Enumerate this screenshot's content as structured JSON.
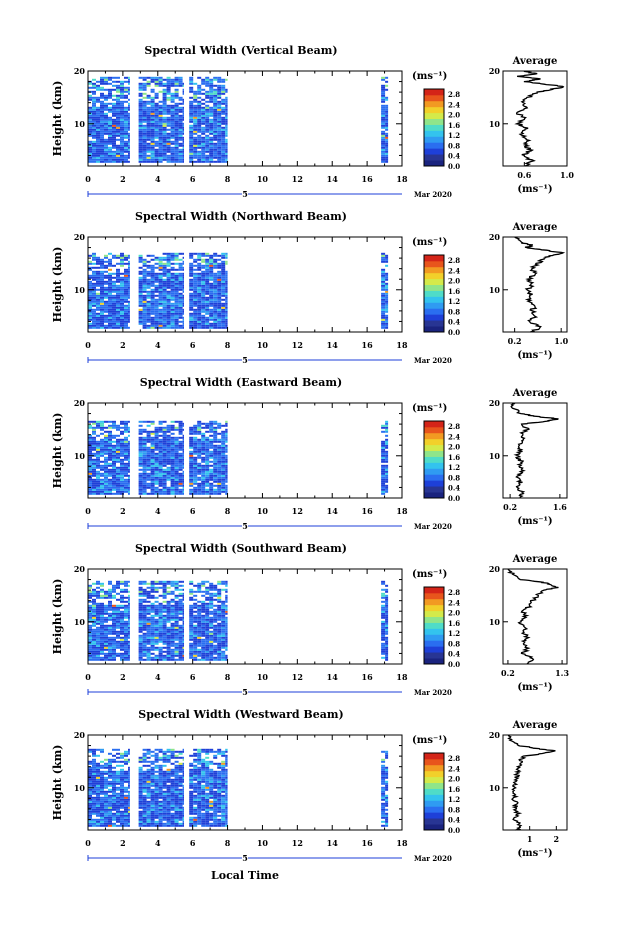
{
  "chart_data": {
    "type": "heatmap",
    "date_label": "5",
    "month_label": "Mar 2020",
    "xlabel": "Local Time",
    "ylabel": "Height (km)",
    "x_ticks": [
      "0",
      "2",
      "4",
      "6",
      "8",
      "10",
      "12",
      "14",
      "16",
      "18"
    ],
    "xlim": [
      0,
      18
    ],
    "ylim": [
      2,
      20
    ],
    "y_ticks": [
      "10",
      "20"
    ],
    "colorbar": {
      "unit": "(ms⁻¹)",
      "tick_labels": [
        "2.8",
        "2.4",
        "2.0",
        "1.6",
        "1.2",
        "0.8",
        "0.4",
        "0.0"
      ],
      "range": [
        0,
        3.0
      ],
      "colors": [
        "#1a237e",
        "#283593",
        "#1e40d8",
        "#2a6ef0",
        "#2f9bf2",
        "#33c3ee",
        "#4fdcc8",
        "#8fe58a",
        "#d4ea4a",
        "#f2d02a",
        "#f29a22",
        "#e8551c",
        "#d42418"
      ]
    },
    "data_time_blocks": [
      [
        0,
        2.4
      ],
      [
        2.9,
        5.5
      ],
      [
        5.8,
        8.0
      ],
      [
        16.8,
        17.2
      ]
    ],
    "average_title": "Average",
    "average_unit": "(ms⁻¹)",
    "average_y_ticks": [
      "10",
      "20"
    ],
    "panels": [
      {
        "title": "Spectral Width (Vertical Beam)",
        "avg_ticks": [
          "0.6",
          "1.0"
        ],
        "avg_xlim": [
          0.4,
          1.0
        ],
        "avg_profile": [
          [
            2,
            0.6
          ],
          [
            3,
            0.68
          ],
          [
            4,
            0.58
          ],
          [
            5,
            0.66
          ],
          [
            6,
            0.6
          ],
          [
            7,
            0.64
          ],
          [
            8,
            0.56
          ],
          [
            9,
            0.63
          ],
          [
            10,
            0.55
          ],
          [
            11,
            0.6
          ],
          [
            12,
            0.54
          ],
          [
            13,
            0.62
          ],
          [
            14,
            0.58
          ],
          [
            15,
            0.64
          ],
          [
            16,
            0.72
          ],
          [
            16.5,
            0.85
          ],
          [
            17,
            0.98
          ],
          [
            17.5,
            0.8
          ],
          [
            18,
            0.6
          ],
          [
            18.5,
            0.75
          ],
          [
            19,
            0.55
          ],
          [
            19.5,
            0.7
          ],
          [
            20,
            0.6
          ]
        ]
      },
      {
        "title": "Spectral Width (Northward Beam)",
        "avg_ticks": [
          "0.2",
          "1.0"
        ],
        "avg_xlim": [
          0.0,
          1.1
        ],
        "avg_profile": [
          [
            2,
            0.5
          ],
          [
            3,
            0.65
          ],
          [
            4,
            0.45
          ],
          [
            5,
            0.55
          ],
          [
            6,
            0.5
          ],
          [
            7,
            0.55
          ],
          [
            8,
            0.45
          ],
          [
            9,
            0.5
          ],
          [
            10,
            0.42
          ],
          [
            11,
            0.5
          ],
          [
            12,
            0.45
          ],
          [
            13,
            0.55
          ],
          [
            14,
            0.5
          ],
          [
            15,
            0.6
          ],
          [
            16,
            0.7
          ],
          [
            16.5,
            0.85
          ],
          [
            17,
            1.0
          ],
          [
            17.5,
            0.75
          ],
          [
            18,
            0.4
          ],
          [
            18.5,
            0.5
          ],
          [
            19,
            0.3
          ],
          [
            20,
            0.2
          ]
        ]
      },
      {
        "title": "Spectral Width (Eastward Beam)",
        "avg_ticks": [
          "0.2",
          "1.6"
        ],
        "avg_xlim": [
          0.0,
          1.8
        ],
        "avg_profile": [
          [
            2,
            0.45
          ],
          [
            3,
            0.55
          ],
          [
            4,
            0.4
          ],
          [
            5,
            0.5
          ],
          [
            6,
            0.45
          ],
          [
            7,
            0.55
          ],
          [
            8,
            0.45
          ],
          [
            9,
            0.5
          ],
          [
            10,
            0.4
          ],
          [
            11,
            0.5
          ],
          [
            12,
            0.45
          ],
          [
            13,
            0.6
          ],
          [
            14,
            0.5
          ],
          [
            15,
            0.7
          ],
          [
            16,
            0.55
          ],
          [
            16.5,
            1.2
          ],
          [
            17,
            1.55
          ],
          [
            17.5,
            0.9
          ],
          [
            18,
            0.5
          ],
          [
            19,
            0.3
          ],
          [
            20,
            0.25
          ]
        ]
      },
      {
        "title": "Spectral Width (Southward Beam)",
        "avg_ticks": [
          "0.2",
          "1.3"
        ],
        "avg_xlim": [
          0.1,
          1.4
        ],
        "avg_profile": [
          [
            2,
            0.55
          ],
          [
            3,
            0.7
          ],
          [
            4,
            0.5
          ],
          [
            5,
            0.6
          ],
          [
            6,
            0.5
          ],
          [
            7,
            0.6
          ],
          [
            8,
            0.5
          ],
          [
            9,
            0.55
          ],
          [
            10,
            0.45
          ],
          [
            11,
            0.55
          ],
          [
            12,
            0.5
          ],
          [
            13,
            0.65
          ],
          [
            14,
            0.7
          ],
          [
            15,
            0.8
          ],
          [
            16,
            0.95
          ],
          [
            16.5,
            1.2
          ],
          [
            17,
            1.1
          ],
          [
            17.5,
            0.9
          ],
          [
            18,
            0.5
          ],
          [
            19,
            0.3
          ],
          [
            20,
            0.2
          ]
        ]
      },
      {
        "title": "Spectral Width (Westward Beam)",
        "avg_ticks": [
          "1",
          "2"
        ],
        "avg_xlim": [
          0.0,
          2.4
        ],
        "avg_profile": [
          [
            2,
            0.5
          ],
          [
            3,
            0.6
          ],
          [
            4,
            0.45
          ],
          [
            5,
            0.55
          ],
          [
            6,
            0.45
          ],
          [
            7,
            0.5
          ],
          [
            8,
            0.4
          ],
          [
            9,
            0.45
          ],
          [
            10,
            0.4
          ],
          [
            11,
            0.45
          ],
          [
            12,
            0.5
          ],
          [
            13,
            0.55
          ],
          [
            14,
            0.6
          ],
          [
            15,
            0.65
          ],
          [
            16,
            0.8
          ],
          [
            16.5,
            1.5
          ],
          [
            17,
            2.0
          ],
          [
            17.5,
            1.2
          ],
          [
            18,
            0.6
          ],
          [
            19,
            0.3
          ],
          [
            20,
            0.2
          ]
        ]
      }
    ]
  }
}
